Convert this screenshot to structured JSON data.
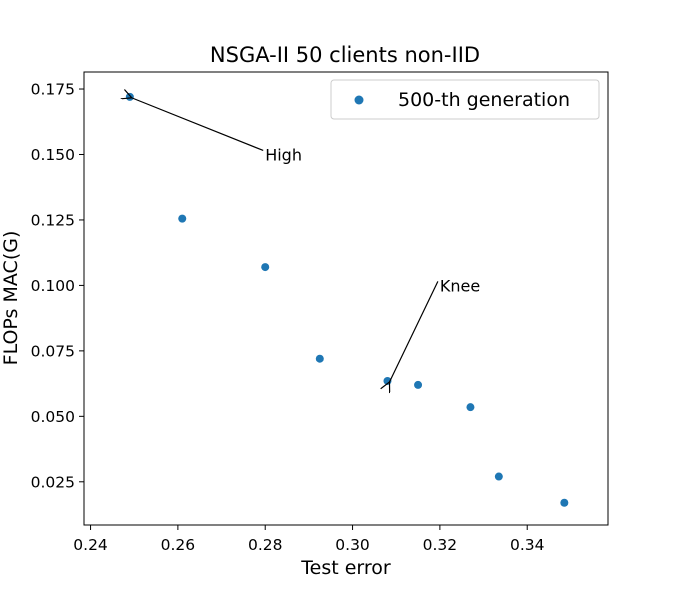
{
  "chart_data": {
    "type": "scatter",
    "title": "NSGA-II 50 clients non-IID",
    "xlabel": "Test error",
    "ylabel": "FLOPs MAC(G)",
    "xlim": [
      0.2385,
      0.3585
    ],
    "ylim": [
      0.0085,
      0.1815
    ],
    "xticks": [
      0.24,
      0.26,
      0.28,
      0.3,
      0.32,
      0.34
    ],
    "xtick_labels": [
      "0.24",
      "0.26",
      "0.28",
      "0.30",
      "0.32",
      "0.34"
    ],
    "yticks": [
      0.025,
      0.05,
      0.075,
      0.1,
      0.125,
      0.15,
      0.175
    ],
    "ytick_labels": [
      "0.025",
      "0.050",
      "0.075",
      "0.100",
      "0.125",
      "0.150",
      "0.175"
    ],
    "grid": false,
    "legend_position": "top-right",
    "series": [
      {
        "name": "500-th generation",
        "color": "#1f77b4",
        "x": [
          0.249,
          0.261,
          0.28,
          0.2925,
          0.308,
          0.315,
          0.327,
          0.3335,
          0.3485
        ],
        "y": [
          0.172,
          0.1255,
          0.107,
          0.072,
          0.0635,
          0.062,
          0.0535,
          0.027,
          0.017
        ]
      }
    ],
    "annotations": [
      {
        "text": "High",
        "point": [
          0.249,
          0.172
        ],
        "text_at": [
          0.28,
          0.15
        ]
      },
      {
        "text": "Knee",
        "point": [
          0.308,
          0.0635
        ],
        "text_at": [
          0.32,
          0.1
        ]
      }
    ]
  }
}
